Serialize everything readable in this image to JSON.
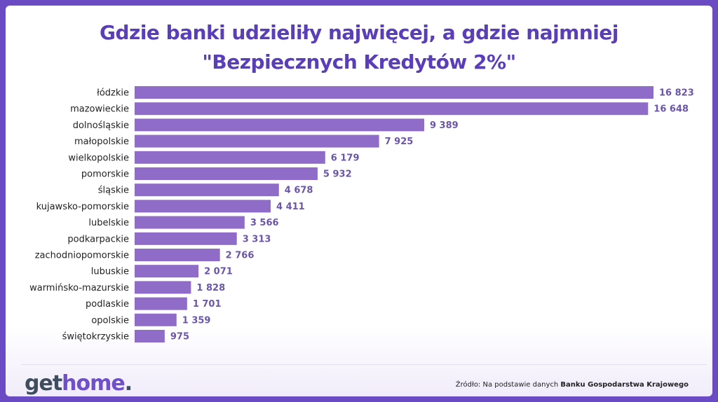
{
  "title_line1": "Gdzie banki udzieliły najwięcej, a gdzie najmniej",
  "title_line2": "\"Bezpiecznych Kredytów 2%\"",
  "logo": {
    "part1": "get",
    "part2": "home",
    "part3": "."
  },
  "source": {
    "prefix": "Źródło: Na podstawie danych ",
    "bold": "Banku Gospodarstwa Krajowego"
  },
  "colors": {
    "bar": "#8f6cc8",
    "title": "#5a3db8",
    "value_label": "#6b56a8",
    "background_frame": "#6a4bc4"
  },
  "chart_data": {
    "type": "bar",
    "orientation": "horizontal",
    "title": "Gdzie banki udzieliły najwięcej, a gdzie najmniej \"Bezpiecznych Kredytów 2%\"",
    "categories": [
      "łódzkie",
      "mazowieckie",
      "dolnośląskie",
      "małopolskie",
      "wielkopolskie",
      "pomorskie",
      "śląskie",
      "kujawsko-pomorskie",
      "lubelskie",
      "podkarpackie",
      "zachodniopomorskie",
      "lubuskie",
      "warmińsko-mazurskie",
      "podlaskie",
      "opolskie",
      "świętokrzyskie"
    ],
    "values": [
      16823,
      16648,
      9389,
      7925,
      6179,
      5932,
      4678,
      4411,
      3566,
      3313,
      2766,
      2071,
      1828,
      1701,
      1359,
      975
    ],
    "value_labels": [
      "16 823",
      "16 648",
      "9 389",
      "7 925",
      "6 179",
      "5 932",
      "4 678",
      "4 411",
      "3 566",
      "3 313",
      "2 766",
      "2 071",
      "1 828",
      "1 701",
      "1 359",
      "975"
    ],
    "xlabel": "",
    "ylabel": "",
    "xlim": [
      0,
      16823
    ],
    "grid": false,
    "legend": "none"
  }
}
